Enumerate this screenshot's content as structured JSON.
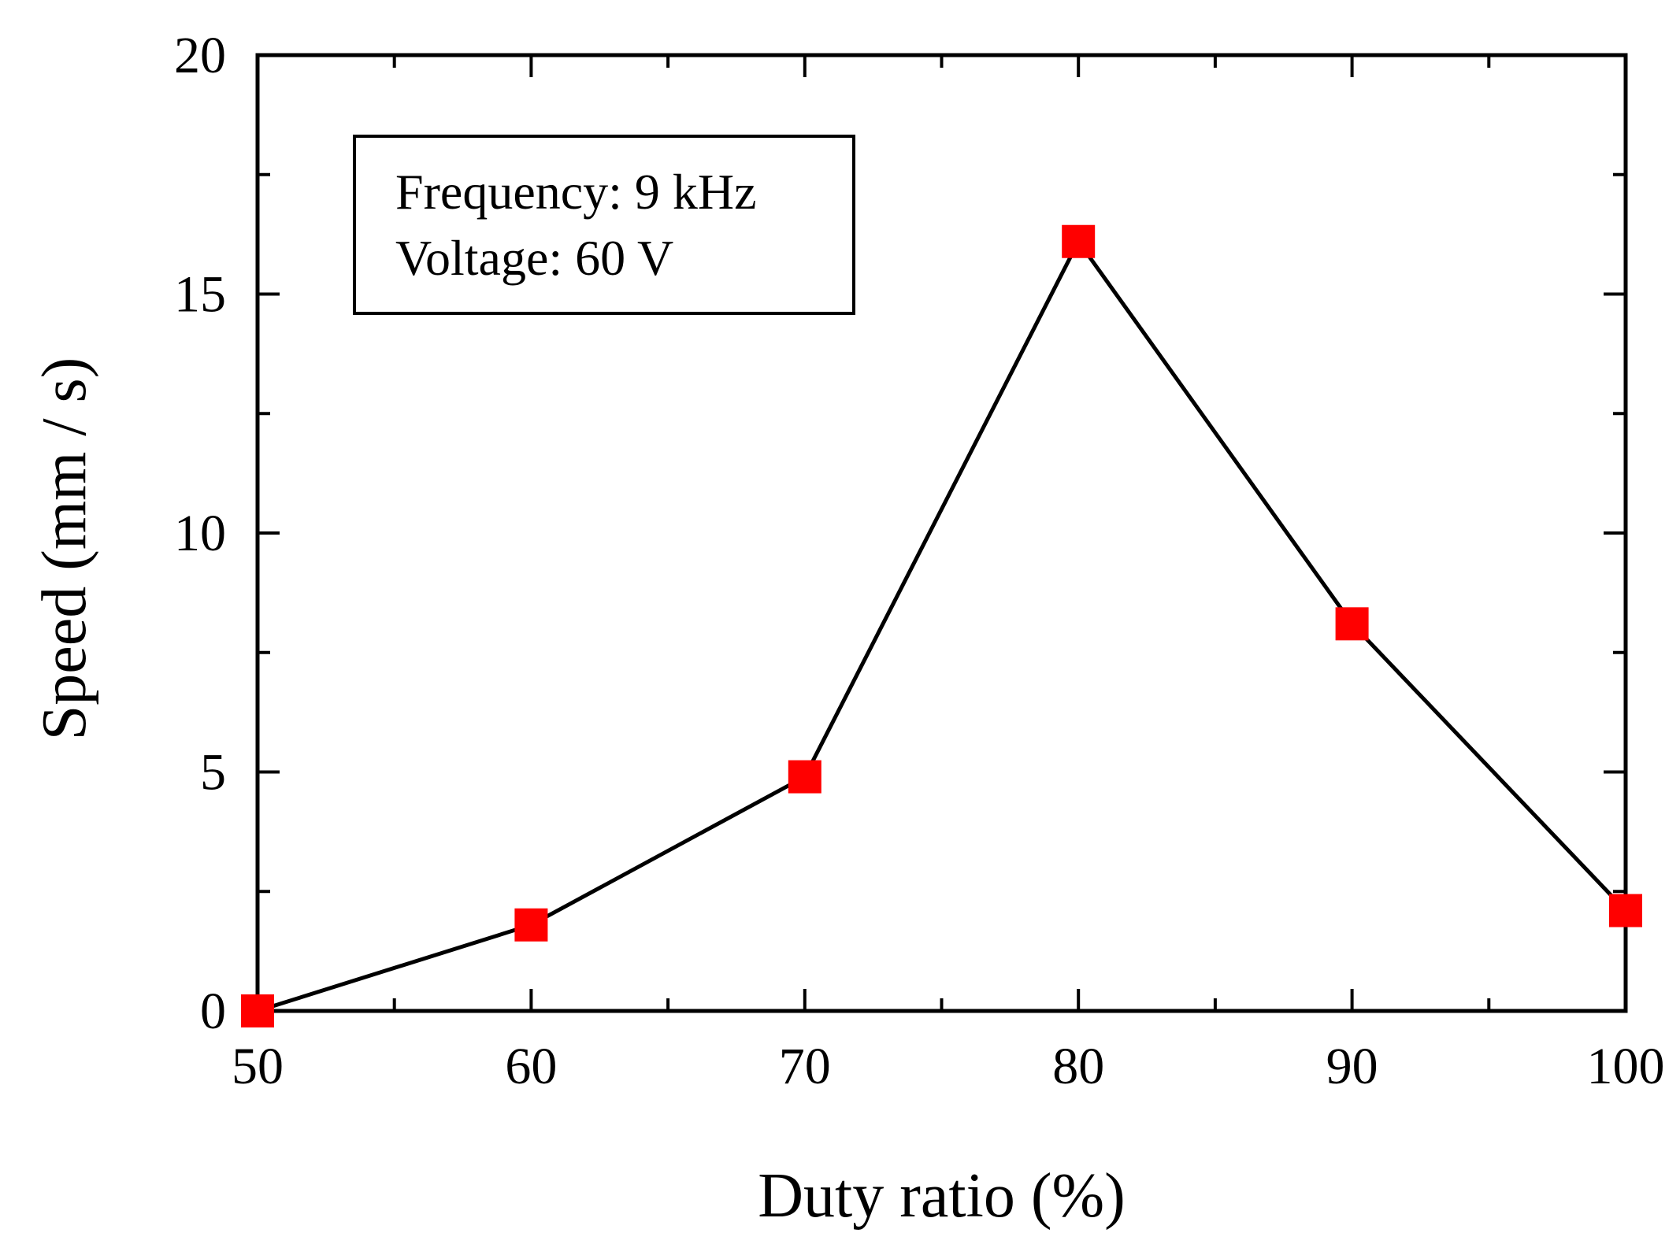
{
  "chart_data": {
    "type": "line",
    "title": "",
    "xlabel": "Duty ratio (%)",
    "ylabel": "Speed (mm / s)",
    "xlim": [
      50,
      100
    ],
    "ylim": [
      0,
      20
    ],
    "x_ticks": [
      50,
      60,
      70,
      80,
      90,
      100
    ],
    "y_ticks": [
      0,
      5,
      10,
      15,
      20
    ],
    "x_minor_step": 5,
    "y_minor_step": 2.5,
    "grid": false,
    "series": [
      {
        "name": "Speed",
        "x": [
          50,
          60,
          70,
          80,
          90,
          100
        ],
        "values": [
          0,
          1.8,
          4.9,
          16.1,
          8.1,
          2.1
        ],
        "line_color": "#000000",
        "marker": "square",
        "marker_color": "#ff0000"
      }
    ],
    "annotation": {
      "lines": [
        "Frequency: 9 kHz",
        "Voltage: 60 V"
      ],
      "placement": "top-left"
    }
  }
}
